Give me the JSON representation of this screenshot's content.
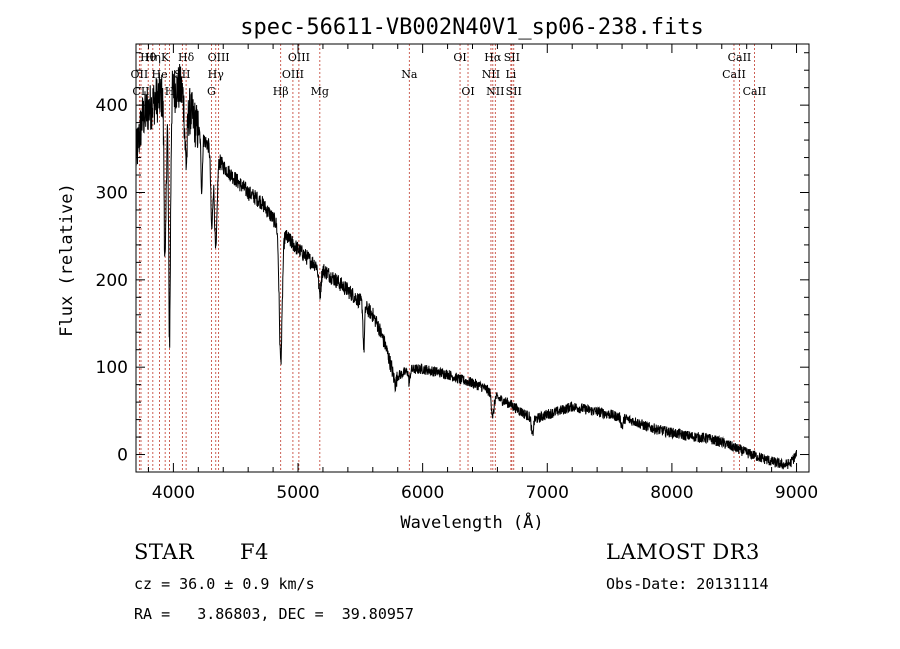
{
  "chart_data": {
    "type": "line",
    "title": "spec-56611-VB002N40V1_sp06-238.fits",
    "xlabel": "Wavelength (Å)",
    "ylabel": "Flux (relative)",
    "xlim": [
      3700,
      9100
    ],
    "ylim": [
      -20,
      470
    ],
    "xticks": [
      4000,
      5000,
      6000,
      7000,
      8000,
      9000
    ],
    "yticks": [
      0,
      100,
      200,
      300,
      400
    ],
    "continuum": [
      [
        3700,
        340
      ],
      [
        3750,
        385
      ],
      [
        3800,
        395
      ],
      [
        3850,
        405
      ],
      [
        3900,
        410
      ],
      [
        3950,
        415
      ],
      [
        4000,
        418
      ],
      [
        4050,
        420
      ],
      [
        4100,
        405
      ],
      [
        4200,
        370
      ],
      [
        4300,
        350
      ],
      [
        4400,
        330
      ],
      [
        4500,
        315
      ],
      [
        4600,
        300
      ],
      [
        4700,
        290
      ],
      [
        4800,
        270
      ],
      [
        4900,
        250
      ],
      [
        5000,
        235
      ],
      [
        5100,
        222
      ],
      [
        5200,
        212
      ],
      [
        5300,
        200
      ],
      [
        5400,
        188
      ],
      [
        5500,
        175
      ],
      [
        5600,
        160
      ],
      [
        5650,
        145
      ],
      [
        5700,
        125
      ],
      [
        5750,
        100
      ],
      [
        5780,
        80
      ],
      [
        5800,
        90
      ],
      [
        5900,
        97
      ],
      [
        6000,
        98
      ],
      [
        6100,
        95
      ],
      [
        6200,
        92
      ],
      [
        6300,
        86
      ],
      [
        6400,
        82
      ],
      [
        6500,
        76
      ],
      [
        6600,
        65
      ],
      [
        6700,
        58
      ],
      [
        6800,
        48
      ],
      [
        6900,
        40
      ],
      [
        7000,
        46
      ],
      [
        7100,
        50
      ],
      [
        7200,
        55
      ],
      [
        7300,
        52
      ],
      [
        7400,
        49
      ],
      [
        7500,
        46
      ],
      [
        7600,
        42
      ],
      [
        7700,
        38
      ],
      [
        7800,
        32
      ],
      [
        7900,
        28
      ],
      [
        8000,
        25
      ],
      [
        8100,
        22
      ],
      [
        8200,
        20
      ],
      [
        8300,
        18
      ],
      [
        8400,
        14
      ],
      [
        8500,
        8
      ],
      [
        8600,
        2
      ],
      [
        8700,
        -3
      ],
      [
        8800,
        -8
      ],
      [
        8900,
        -12
      ],
      [
        8950,
        -10
      ],
      [
        9000,
        0
      ]
    ],
    "absorption_features": [
      {
        "x": 3934,
        "depth": 200,
        "width": 8
      },
      {
        "x": 3969,
        "depth": 280,
        "width": 8
      },
      {
        "x": 4102,
        "depth": 70,
        "width": 10
      },
      {
        "x": 4227,
        "depth": 60,
        "width": 6
      },
      {
        "x": 4308,
        "depth": 90,
        "width": 8
      },
      {
        "x": 4340,
        "depth": 110,
        "width": 10
      },
      {
        "x": 4861,
        "depth": 150,
        "width": 12
      },
      {
        "x": 5175,
        "depth": 30,
        "width": 10
      },
      {
        "x": 5528,
        "depth": 50,
        "width": 6
      },
      {
        "x": 5893,
        "depth": 15,
        "width": 6
      },
      {
        "x": 6563,
        "depth": 25,
        "width": 10
      },
      {
        "x": 6880,
        "depth": 20,
        "width": 8
      },
      {
        "x": 7600,
        "depth": 10,
        "width": 8
      }
    ],
    "spectral_lines": [
      {
        "label": "Hθ",
        "x": 3798,
        "row": 0
      },
      {
        "label": "OII",
        "x": 3727,
        "row": 1
      },
      {
        "label": "CII",
        "x": 3740,
        "row": 2
      },
      {
        "label": "He",
        "x": 3889,
        "row": 1
      },
      {
        "label": "Hη",
        "x": 3835,
        "row": 0
      },
      {
        "label": "K",
        "x": 3934,
        "row": 0
      },
      {
        "label": "H",
        "x": 3969,
        "row": 2
      },
      {
        "label": "Hδ",
        "x": 4102,
        "row": 0
      },
      {
        "label": "SII",
        "x": 4072,
        "row": 1
      },
      {
        "label": "OIII",
        "x": 4363,
        "row": 0
      },
      {
        "label": "Hγ",
        "x": 4340,
        "row": 1
      },
      {
        "label": "G",
        "x": 4305,
        "row": 2
      },
      {
        "label": "Hβ",
        "x": 4861,
        "row": 2
      },
      {
        "label": "OIII",
        "x": 4959,
        "row": 1
      },
      {
        "label": "OIII",
        "x": 5007,
        "row": 0
      },
      {
        "label": "Mg",
        "x": 5175,
        "row": 2
      },
      {
        "label": "Na",
        "x": 5893,
        "row": 1
      },
      {
        "label": "OI",
        "x": 6300,
        "row": 0
      },
      {
        "label": "OI",
        "x": 6364,
        "row": 2
      },
      {
        "label": "Hα",
        "x": 6563,
        "row": 0
      },
      {
        "label": "NII",
        "x": 6548,
        "row": 1
      },
      {
        "label": "NII",
        "x": 6583,
        "row": 2
      },
      {
        "label": "SII",
        "x": 6716,
        "row": 0
      },
      {
        "label": "Li",
        "x": 6708,
        "row": 1
      },
      {
        "label": "SII",
        "x": 6731,
        "row": 2
      },
      {
        "label": "CaII",
        "x": 8542,
        "row": 0
      },
      {
        "label": "CaII",
        "x": 8498,
        "row": 1
      },
      {
        "label": "CaII",
        "x": 8662,
        "row": 2
      }
    ]
  },
  "info": {
    "object_class": "STAR",
    "subclass": "F4",
    "survey": "LAMOST DR3",
    "cz": "cz = 36.0 ± 0.9 km/s",
    "obs_date": "Obs-Date: 20131114",
    "coords": "RA =   3.86803, DEC =  39.80957"
  }
}
